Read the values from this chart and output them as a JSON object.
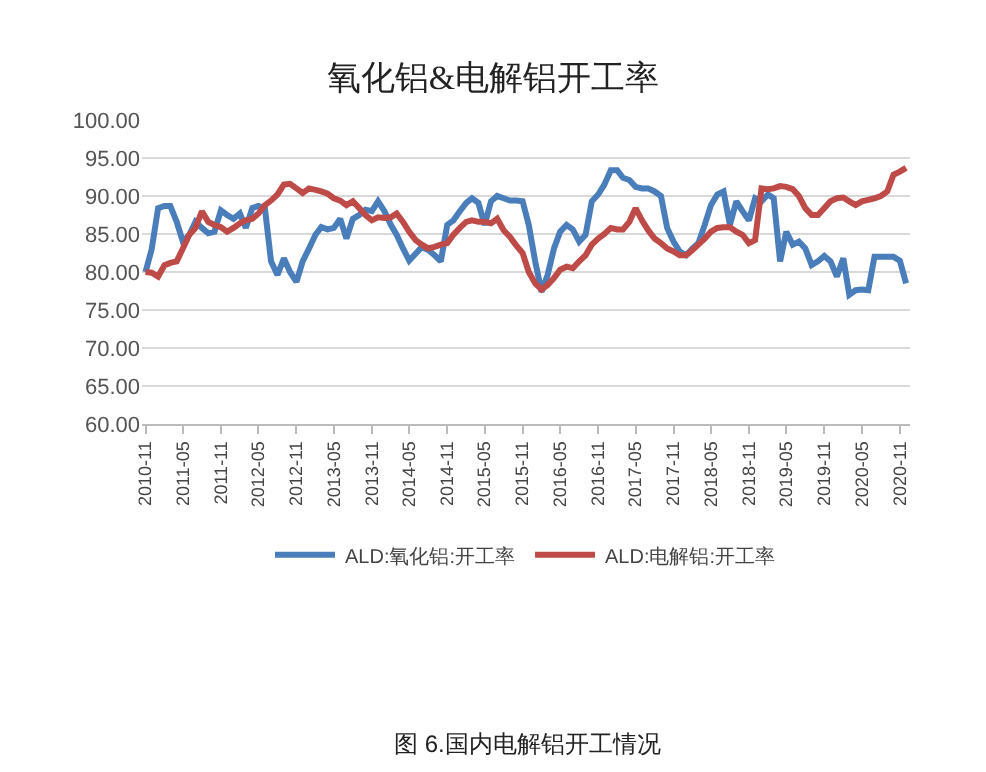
{
  "chart_data": {
    "type": "line",
    "title": "氧化铝&电解铝开工率",
    "x": [
      "2010-11",
      "2010-12",
      "2011-01",
      "2011-02",
      "2011-03",
      "2011-04",
      "2011-05",
      "2011-06",
      "2011-07",
      "2011-08",
      "2011-09",
      "2011-10",
      "2011-11",
      "2011-12",
      "2012-01",
      "2012-02",
      "2012-03",
      "2012-04",
      "2012-05",
      "2012-06",
      "2012-07",
      "2012-08",
      "2012-09",
      "2012-10",
      "2012-11",
      "2012-12",
      "2013-01",
      "2013-02",
      "2013-03",
      "2013-04",
      "2013-05",
      "2013-06",
      "2013-07",
      "2013-08",
      "2013-09",
      "2013-10",
      "2013-11",
      "2013-12",
      "2014-01",
      "2014-02",
      "2014-03",
      "2014-04",
      "2014-05",
      "2014-06",
      "2014-07",
      "2014-08",
      "2014-09",
      "2014-10",
      "2014-11",
      "2014-12",
      "2015-01",
      "2015-02",
      "2015-03",
      "2015-04",
      "2015-05",
      "2015-06",
      "2015-07",
      "2015-08",
      "2015-09",
      "2015-10",
      "2015-11",
      "2015-12",
      "2016-01",
      "2016-02",
      "2016-03",
      "2016-04",
      "2016-05",
      "2016-06",
      "2016-07",
      "2016-08",
      "2016-09",
      "2016-10",
      "2016-11",
      "2016-12",
      "2017-01",
      "2017-02",
      "2017-03",
      "2017-04",
      "2017-05",
      "2017-06",
      "2017-07",
      "2017-08",
      "2017-09",
      "2017-10",
      "2017-11",
      "2017-12",
      "2018-01",
      "2018-02",
      "2018-03",
      "2018-04",
      "2018-05",
      "2018-06",
      "2018-07",
      "2018-08",
      "2018-09",
      "2018-10",
      "2018-11",
      "2018-12",
      "2019-01",
      "2019-02",
      "2019-03",
      "2019-04",
      "2019-05",
      "2019-06",
      "2019-07",
      "2019-08",
      "2019-09",
      "2019-10",
      "2019-11",
      "2019-12",
      "2020-01",
      "2020-02",
      "2020-03",
      "2020-04",
      "2020-05",
      "2020-06",
      "2020-07",
      "2020-08",
      "2020-09",
      "2020-10",
      "2020-11",
      "2020-12"
    ],
    "series": [
      {
        "name": "ALD:氧化铝:开工率",
        "color": "#4a7ebb",
        "values": [
          80,
          83,
          88.4,
          88.7,
          88.7,
          86.6,
          84,
          84.9,
          86.6,
          85.8,
          85.1,
          85.3,
          88.1,
          87.5,
          87,
          87.7,
          85.8,
          88.4,
          88.7,
          88.4,
          81.4,
          79.6,
          81.8,
          80,
          78.7,
          81.4,
          83.1,
          84.9,
          85.9,
          85.6,
          85.8,
          87,
          84.4,
          87,
          87.5,
          88.2,
          88,
          89.3,
          88,
          86.2,
          84.9,
          83.1,
          81.5,
          82.4,
          83.3,
          82.9,
          82.2,
          81.4,
          86.2,
          86.8,
          88,
          89.1,
          89.7,
          89.1,
          86.2,
          89.3,
          90,
          89.7,
          89.4,
          89.4,
          89.3,
          86.2,
          81.4,
          77.4,
          79.6,
          83.1,
          85.3,
          86.2,
          85.6,
          84,
          84.9,
          89.3,
          90.2,
          91.5,
          93.4,
          93.4,
          92.4,
          92.1,
          91.2,
          91,
          91,
          90.6,
          90,
          85.8,
          84,
          82.7,
          82.2,
          83.1,
          83.8,
          86.2,
          88.8,
          90.2,
          90.6,
          86.2,
          89.3,
          88,
          86.8,
          89.7,
          89.3,
          90.2,
          89.7,
          81.4,
          85.3,
          83.6,
          84,
          83.1,
          80.9,
          81.4,
          82.1,
          81.4,
          79.4,
          81.8,
          77,
          77.6,
          77.7,
          77.6,
          82,
          82,
          82,
          82,
          81.5,
          78.5
        ]
      },
      {
        "name": "ALD:电解铝:开工率",
        "color": "#be4b48",
        "values": [
          80,
          79.9,
          79.4,
          80.9,
          81.2,
          81.4,
          83.1,
          84.9,
          85.8,
          88,
          86.6,
          86.2,
          85.9,
          85.3,
          85.8,
          86.4,
          86.8,
          87,
          87.7,
          88.8,
          89.4,
          90.2,
          91.5,
          91.6,
          91,
          90.4,
          91,
          90.8,
          90.6,
          90.3,
          89.7,
          89.4,
          88.8,
          89.3,
          88.4,
          87.5,
          86.8,
          87.2,
          87.1,
          87.2,
          87.7,
          86.6,
          85.3,
          84.2,
          83.6,
          83.1,
          83.3,
          83.6,
          83.8,
          84.9,
          85.8,
          86.6,
          86.8,
          86.6,
          86.6,
          86.4,
          87,
          85.5,
          84.6,
          83.5,
          82.5,
          80,
          78.5,
          77.7,
          78.3,
          79.2,
          80.3,
          80.7,
          80.5,
          81.4,
          82.2,
          83.6,
          84.4,
          85,
          85.8,
          85.6,
          85.6,
          86.6,
          88.4,
          86.8,
          85.5,
          84.4,
          83.8,
          83.1,
          82.7,
          82.2,
          82.2,
          82.9,
          83.6,
          84.4,
          85.3,
          85.8,
          85.9,
          85.9,
          85.3,
          84.9,
          83.8,
          84.2,
          91,
          90.9,
          91,
          91.3,
          91.2,
          90.9,
          90,
          88.4,
          87.5,
          87.5,
          88.4,
          89.3,
          89.7,
          89.8,
          89.3,
          88.8,
          89.3,
          89.5,
          89.7,
          90,
          90.6,
          92.8,
          93.2,
          93.7
        ]
      }
    ],
    "xlim": [
      "2010-10-15",
      "2020-12-20"
    ],
    "xticks": [
      "2010-11",
      "2011-05",
      "2011-11",
      "2012-05",
      "2012-11",
      "2013-05",
      "2013-11",
      "2014-05",
      "2014-11",
      "2015-05",
      "2015-11",
      "2016-05",
      "2016-11",
      "2017-05",
      "2017-11",
      "2018-05",
      "2018-11",
      "2019-05",
      "2019-11",
      "2020-05",
      "2020-11"
    ],
    "ylim": [
      60,
      100
    ],
    "yticks": [
      {
        "value": 60,
        "label": "60.00"
      },
      {
        "value": 65,
        "label": "65.00"
      },
      {
        "value": 70,
        "label": "70.00"
      },
      {
        "value": 75,
        "label": "75.00"
      },
      {
        "value": 80,
        "label": "80.00"
      },
      {
        "value": 85,
        "label": "85.00"
      },
      {
        "value": 90,
        "label": "90.00"
      },
      {
        "value": 95,
        "label": "95.00"
      },
      {
        "value": 100,
        "label": "100.00"
      }
    ],
    "grid": "y",
    "legend": "bottom",
    "marker": "none",
    "line_style": "solid",
    "annotations": [
      "图 6.国内电解铝开工情况"
    ]
  }
}
